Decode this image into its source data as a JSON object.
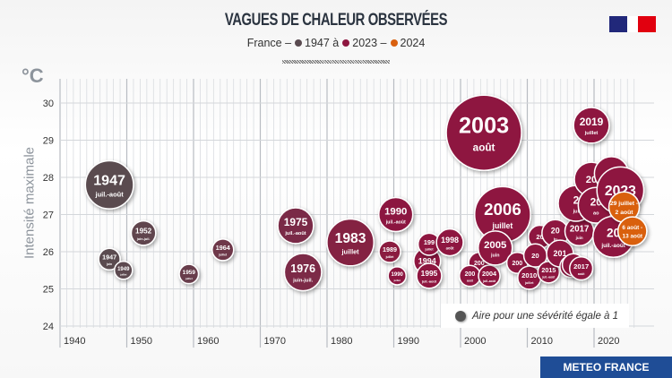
{
  "header": {
    "title": "VAGUES DE CHALEUR OBSERVÉES",
    "subtitle_prefix": "France –",
    "subtitle_from": "1947 à",
    "subtitle_to": "2023 –",
    "subtitle_last": "2024"
  },
  "colors": {
    "early": "#5a4b50",
    "late": "#8e1740",
    "year_2024": "#d9600f",
    "brand": "#1f4d96"
  },
  "brand": "METEO FRANCE",
  "chart_data": {
    "type": "scatter",
    "title": "VAGUES DE CHALEUR OBSERVÉES",
    "ylabel": "Intensité maximale",
    "yunit": "°C",
    "xlim": [
      1938,
      2027
    ],
    "ylim": [
      24,
      30.5
    ],
    "xticks": [
      1940,
      1950,
      1960,
      1970,
      1980,
      1990,
      2000,
      2010,
      2020
    ],
    "yticks": [
      24,
      25,
      26,
      27,
      28,
      29,
      30
    ],
    "grid": true,
    "legend": {
      "text": "Aire pour une sévérité égale à 1",
      "placement": "bottom-right"
    },
    "points": [
      {
        "label": "1947",
        "sub": "juil.-août",
        "year": 1947,
        "x": 1947.4,
        "y": 27.8,
        "severity": 20
      },
      {
        "label": "1947",
        "sub": "juin",
        "year": 1947,
        "x": 1947.4,
        "y": 25.8,
        "severity": 4
      },
      {
        "label": "1949",
        "sub": "juillet",
        "year": 1949,
        "x": 1949.5,
        "y": 25.5,
        "severity": 2.8
      },
      {
        "label": "1952",
        "sub": "juin-juil.",
        "year": 1952,
        "x": 1952.5,
        "y": 26.5,
        "severity": 5.2
      },
      {
        "label": "1959",
        "sub": "juillet",
        "year": 1959,
        "x": 1959.3,
        "y": 25.4,
        "severity": 3.2
      },
      {
        "label": "1964",
        "sub": "juillet",
        "year": 1964,
        "x": 1964.4,
        "y": 26.05,
        "severity": 4
      },
      {
        "label": "1975",
        "sub": "juil.-août",
        "year": 1975,
        "x": 1975.3,
        "y": 26.7,
        "severity": 11
      },
      {
        "label": "1976",
        "sub": "juin-juil.",
        "year": 1976,
        "x": 1976.4,
        "y": 25.45,
        "severity": 12
      },
      {
        "label": "1983",
        "sub": "juillet",
        "year": 1983,
        "x": 1983.5,
        "y": 26.25,
        "severity": 19
      },
      {
        "label": "1989",
        "sub": "juillet",
        "year": 1989,
        "x": 1989.4,
        "y": 26.0,
        "severity": 4
      },
      {
        "label": "1990",
        "sub": "juil.-août",
        "year": 1990,
        "x": 1990.3,
        "y": 27.0,
        "severity": 10
      },
      {
        "label": "1990",
        "sub": "juillet",
        "year": 1990,
        "x": 1990.5,
        "y": 25.35,
        "severity": 2.8
      },
      {
        "label": "1994",
        "sub": "",
        "year": 1994,
        "x": 1995,
        "y": 25.75,
        "severity": 6.2
      },
      {
        "label": "199",
        "sub": "juillet",
        "year": 1992,
        "x": 1995.3,
        "y": 26.2,
        "severity": 4.2
      },
      {
        "label": "1995",
        "sub": "juil.-août",
        "year": 1995,
        "x": 1995.3,
        "y": 25.35,
        "severity": 5.4
      },
      {
        "label": "1998",
        "sub": "août",
        "year": 1998,
        "x": 1998.4,
        "y": 26.25,
        "severity": 6.2
      },
      {
        "label": "2003",
        "sub": "août",
        "year": 2003,
        "x": 2003.5,
        "y": 29.2,
        "severity": 49
      },
      {
        "label": "200",
        "sub": "",
        "year": 2003,
        "x": 2002.8,
        "y": 25.7,
        "severity": 3.8
      },
      {
        "label": "200",
        "sub": "août",
        "year": 2001,
        "x": 2001.4,
        "y": 25.35,
        "severity": 3.8
      },
      {
        "label": "2004",
        "sub": "juil.-août",
        "year": 2004,
        "x": 2004.3,
        "y": 25.35,
        "severity": 4
      },
      {
        "label": "2006",
        "sub": "juillet",
        "year": 2006,
        "x": 2006.3,
        "y": 27.0,
        "severity": 27
      },
      {
        "label": "2005",
        "sub": "juin",
        "year": 2005,
        "x": 2005.2,
        "y": 26.1,
        "severity": 10
      },
      {
        "label": "200",
        "sub": "",
        "year": 2009,
        "x": 2008.5,
        "y": 25.7,
        "severity": 3.8
      },
      {
        "label": "2010",
        "sub": "juillet",
        "year": 2010,
        "x": 2010.3,
        "y": 25.3,
        "severity": 4.6
      },
      {
        "label": "20",
        "sub": "",
        "year": 2011,
        "x": 2011.9,
        "y": 26.4,
        "severity": 4.6
      },
      {
        "label": "20",
        "sub": "",
        "year": 2012,
        "x": 2011.2,
        "y": 25.9,
        "severity": 4.6
      },
      {
        "label": "2015",
        "sub": "juil.-août",
        "year": 2015,
        "x": 2013.2,
        "y": 25.45,
        "severity": 4
      },
      {
        "label": "20",
        "sub": "ju",
        "year": 2013,
        "x": 2014.2,
        "y": 26.5,
        "severity": 6.2
      },
      {
        "label": "201",
        "sub": "",
        "year": 2014,
        "x": 2014.9,
        "y": 25.95,
        "severity": 6.2
      },
      {
        "label": "2",
        "sub": "",
        "year": 2016,
        "x": 2016.5,
        "y": 25.6,
        "severity": 4
      },
      {
        "label": "",
        "sub": "",
        "year": 2017,
        "x": 2016.9,
        "y": 25.65,
        "severity": 4.2
      },
      {
        "label": "2017",
        "sub": "août",
        "year": 2017,
        "x": 2017,
        "y": 25.55,
        "severity": 4.6
      },
      {
        "label": "2017",
        "sub": "juin",
        "year": 2017,
        "x": 2017.8,
        "y": 26.55,
        "severity": 7.2
      },
      {
        "label": "2019",
        "sub": "juillet",
        "year": 2019,
        "x": 2019.6,
        "y": 29.4,
        "severity": 11
      },
      {
        "label": "2",
        "sub": "jui",
        "year": 2018,
        "x": 2017.3,
        "y": 27.3,
        "severity": 11
      },
      {
        "label": "20",
        "sub": "",
        "year": 2020,
        "x": 2019.6,
        "y": 27.95,
        "severity": 10
      },
      {
        "label": "2",
        "sub": "",
        "year": 2021,
        "x": 2022.6,
        "y": 28.1,
        "severity": 10
      },
      {
        "label": "20",
        "sub": "ao",
        "year": 2022,
        "x": 2020.3,
        "y": 27.25,
        "severity": 11
      },
      {
        "label": "2023",
        "sub": "",
        "year": 2023,
        "x": 2022.6,
        "y": 27.65,
        "severity": 19
      },
      {
        "label": "20",
        "sub": "juil.-août",
        "year": 2022,
        "x": 2022.9,
        "y": 26.4,
        "severity": 14.5
      },
      {
        "label": "29 juillet -",
        "sub": "2 août",
        "year": 2024,
        "x": 2024.5,
        "y": 27.2,
        "severity": 8
      },
      {
        "label": "6 août -",
        "sub": "13 août",
        "year": 2024,
        "x": 2024.4,
        "y": 26.55,
        "severity": 7.2
      }
    ]
  }
}
